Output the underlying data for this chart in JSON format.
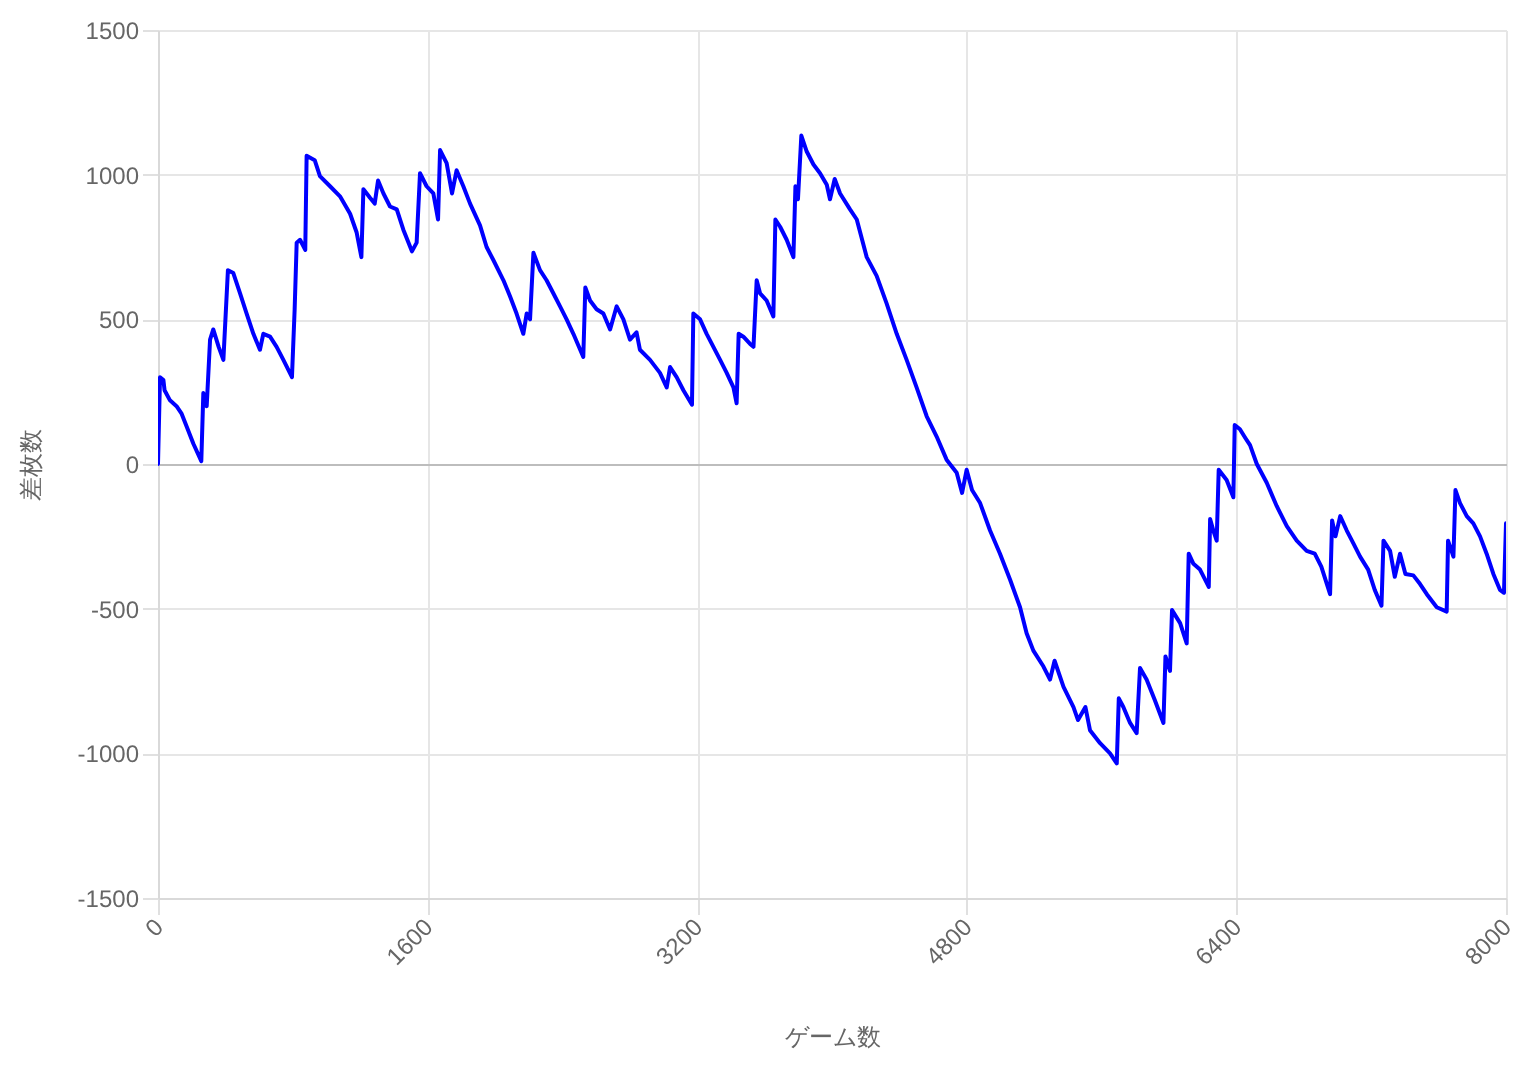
{
  "chart_data": {
    "type": "line",
    "xlabel": "ゲーム数",
    "ylabel": "差枚数",
    "x": [
      0,
      12,
      32,
      39,
      71,
      110,
      139,
      170,
      210,
      257,
      269,
      289,
      309,
      328,
      360,
      388,
      415,
      447,
      487,
      526,
      566,
      605,
      625,
      665,
      704,
      744,
      795,
      811,
      823,
      843,
      874,
      882,
      930,
      961,
      1021,
      1080,
      1140,
      1179,
      1207,
      1219,
      1258,
      1286,
      1306,
      1338,
      1377,
      1417,
      1456,
      1507,
      1535,
      1555,
      1594,
      1634,
      1662,
      1674,
      1713,
      1745,
      1772,
      1812,
      1852,
      1911,
      1950,
      1990,
      2050,
      2089,
      2128,
      2168,
      2188,
      2208,
      2228,
      2267,
      2306,
      2346,
      2386,
      2425,
      2465,
      2524,
      2536,
      2564,
      2603,
      2643,
      2683,
      2722,
      2762,
      2801,
      2840,
      2860,
      2920,
      2979,
      3019,
      3039,
      3078,
      3118,
      3169,
      3177,
      3217,
      3256,
      3296,
      3336,
      3375,
      3415,
      3434,
      3446,
      3474,
      3514,
      3534,
      3553,
      3573,
      3612,
      3652,
      3664,
      3692,
      3731,
      3771,
      3783,
      3798,
      3818,
      3850,
      3890,
      3929,
      3969,
      3988,
      4016,
      4048,
      4107,
      4147,
      4206,
      4265,
      4324,
      4384,
      4443,
      4502,
      4562,
      4621,
      4680,
      4740,
      4772,
      4799,
      4831,
      4879,
      4938,
      4997,
      5057,
      5116,
      5155,
      5195,
      5255,
      5294,
      5321,
      5374,
      5433,
      5460,
      5504,
      5531,
      5591,
      5650,
      5690,
      5702,
      5729,
      5769,
      5808,
      5828,
      5867,
      5915,
      5967,
      5979,
      6006,
      6018,
      6066,
      6105,
      6117,
      6145,
      6184,
      6236,
      6244,
      6263,
      6283,
      6295,
      6342,
      6382,
      6390,
      6421,
      6453,
      6481,
      6521,
      6580,
      6639,
      6699,
      6758,
      6817,
      6865,
      6904,
      6956,
      6968,
      6988,
      7016,
      7055,
      7095,
      7134,
      7182,
      7221,
      7261,
      7273,
      7312,
      7340,
      7371,
      7403,
      7450,
      7490,
      7530,
      7589,
      7648,
      7656,
      7688,
      7700,
      7727,
      7767,
      7806,
      7846,
      7885,
      7925,
      7964,
      7988,
      8000
    ],
    "series": [
      {
        "color": "#0000ff",
        "values": [
          0,
          300,
          290,
          255,
          220,
          200,
          175,
          130,
          70,
          10,
          245,
          200,
          430,
          465,
          405,
          360,
          670,
          660,
          590,
          520,
          450,
          395,
          450,
          440,
          405,
          360,
          300,
          535,
          765,
          775,
          740,
          1065,
          1050,
          995,
          960,
          925,
          865,
          800,
          715,
          950,
          920,
          900,
          980,
          935,
          890,
          880,
          810,
          735,
          765,
          1005,
          960,
          935,
          845,
          1085,
          1040,
          935,
          1015,
          960,
          900,
          825,
          750,
          705,
          635,
          580,
          520,
          450,
          520,
          500,
          730,
          670,
          635,
          590,
          545,
          500,
          450,
          370,
          610,
          565,
          535,
          520,
          465,
          545,
          500,
          430,
          455,
          395,
          360,
          315,
          265,
          335,
          300,
          255,
          205,
          520,
          500,
          450,
          405,
          360,
          315,
          265,
          210,
          450,
          440,
          415,
          405,
          635,
          590,
          565,
          510,
          845,
          820,
          775,
          715,
          960,
          915,
          1135,
          1080,
          1035,
          1005,
          965,
          915,
          985,
          935,
          880,
          845,
          715,
          650,
          555,
          450,
          360,
          265,
          165,
          95,
          15,
          -30,
          -100,
          -20,
          -90,
          -135,
          -230,
          -310,
          -400,
          -495,
          -585,
          -645,
          -700,
          -745,
          -680,
          -770,
          -840,
          -885,
          -840,
          -920,
          -965,
          -1000,
          -1035,
          -810,
          -840,
          -895,
          -930,
          -705,
          -745,
          -815,
          -895,
          -665,
          -715,
          -505,
          -550,
          -620,
          -310,
          -345,
          -365,
          -425,
          -190,
          -230,
          -265,
          -20,
          -55,
          -115,
          135,
          120,
          90,
          65,
          0,
          -65,
          -145,
          -215,
          -265,
          -300,
          -310,
          -355,
          -450,
          -195,
          -250,
          -180,
          -230,
          -275,
          -320,
          -365,
          -435,
          -490,
          -265,
          -300,
          -390,
          -310,
          -380,
          -385,
          -415,
          -450,
          -495,
          -510,
          -265,
          -320,
          -90,
          -135,
          -180,
          -205,
          -250,
          -310,
          -380,
          -435,
          -445,
          -205
        ]
      }
    ],
    "xlim": [
      0,
      8000
    ],
    "xticks": [
      0,
      1600,
      3200,
      4800,
      6400,
      8000
    ],
    "ylim": [
      -1500,
      1500
    ],
    "yticks": [
      -1500,
      -1000,
      -500,
      0,
      500,
      1000,
      1500
    ],
    "grid": true,
    "marker": "none",
    "line_style": "solid"
  }
}
